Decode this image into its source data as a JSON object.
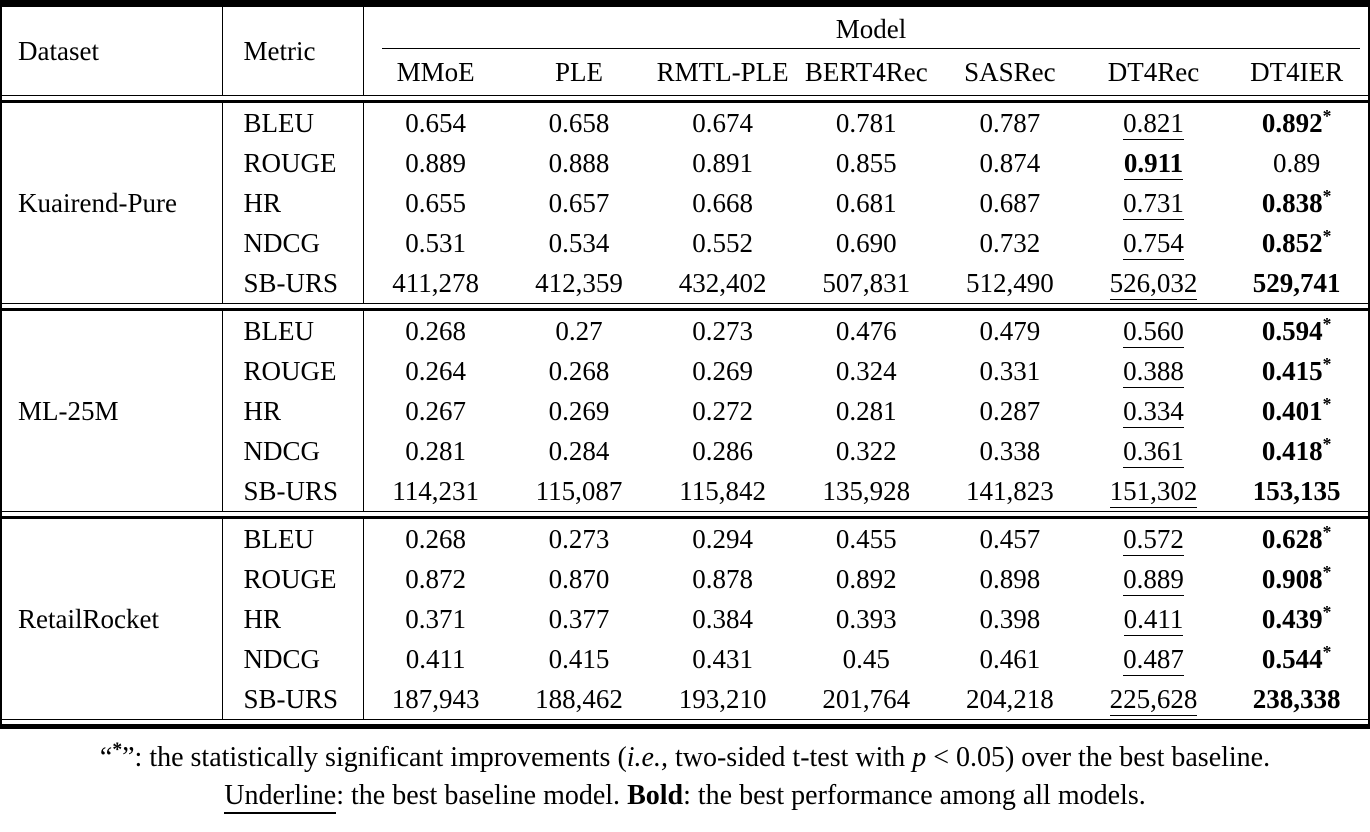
{
  "table": {
    "header": {
      "dataset_label": "Dataset",
      "metric_label": "Metric",
      "model_group_label": "Model",
      "model_columns": [
        "MMoE",
        "PLE",
        "RMTL-PLE",
        "BERT4Rec",
        "SASRec",
        "DT4Rec",
        "DT4IER"
      ]
    },
    "groups": [
      {
        "dataset": "Kuairend-Pure",
        "rows": [
          {
            "metric": "BLEU",
            "cells": [
              {
                "v": "0.654"
              },
              {
                "v": "0.658"
              },
              {
                "v": "0.674"
              },
              {
                "v": "0.781"
              },
              {
                "v": "0.787"
              },
              {
                "v": "0.821",
                "underline": true
              },
              {
                "v": "0.892",
                "bold": true,
                "star": true
              }
            ]
          },
          {
            "metric": "ROUGE",
            "cells": [
              {
                "v": "0.889"
              },
              {
                "v": "0.888"
              },
              {
                "v": "0.891"
              },
              {
                "v": "0.855"
              },
              {
                "v": "0.874"
              },
              {
                "v": "0.911",
                "bold": true,
                "underline": true
              },
              {
                "v": "0.89"
              }
            ]
          },
          {
            "metric": "HR",
            "cells": [
              {
                "v": "0.655"
              },
              {
                "v": "0.657"
              },
              {
                "v": "0.668"
              },
              {
                "v": "0.681"
              },
              {
                "v": "0.687"
              },
              {
                "v": "0.731",
                "underline": true
              },
              {
                "v": "0.838",
                "bold": true,
                "star": true
              }
            ]
          },
          {
            "metric": "NDCG",
            "cells": [
              {
                "v": "0.531"
              },
              {
                "v": "0.534"
              },
              {
                "v": "0.552"
              },
              {
                "v": "0.690"
              },
              {
                "v": "0.732"
              },
              {
                "v": "0.754",
                "underline": true
              },
              {
                "v": "0.852",
                "bold": true,
                "star": true
              }
            ]
          },
          {
            "metric": "SB-URS",
            "cells": [
              {
                "v": "411,278"
              },
              {
                "v": "412,359"
              },
              {
                "v": "432,402"
              },
              {
                "v": "507,831"
              },
              {
                "v": "512,490"
              },
              {
                "v": "526,032",
                "underline": true
              },
              {
                "v": "529,741",
                "bold": true
              }
            ]
          }
        ]
      },
      {
        "dataset": "ML-25M",
        "rows": [
          {
            "metric": "BLEU",
            "cells": [
              {
                "v": "0.268"
              },
              {
                "v": "0.27"
              },
              {
                "v": "0.273"
              },
              {
                "v": "0.476"
              },
              {
                "v": "0.479"
              },
              {
                "v": "0.560",
                "underline": true
              },
              {
                "v": "0.594",
                "bold": true,
                "star": true
              }
            ]
          },
          {
            "metric": "ROUGE",
            "cells": [
              {
                "v": "0.264"
              },
              {
                "v": "0.268"
              },
              {
                "v": "0.269"
              },
              {
                "v": "0.324"
              },
              {
                "v": "0.331"
              },
              {
                "v": "0.388",
                "underline": true
              },
              {
                "v": "0.415",
                "bold": true,
                "star": true
              }
            ]
          },
          {
            "metric": "HR",
            "cells": [
              {
                "v": "0.267"
              },
              {
                "v": "0.269"
              },
              {
                "v": "0.272"
              },
              {
                "v": "0.281"
              },
              {
                "v": "0.287"
              },
              {
                "v": "0.334",
                "underline": true
              },
              {
                "v": "0.401",
                "bold": true,
                "star": true
              }
            ]
          },
          {
            "metric": "NDCG",
            "cells": [
              {
                "v": "0.281"
              },
              {
                "v": "0.284"
              },
              {
                "v": "0.286"
              },
              {
                "v": "0.322"
              },
              {
                "v": "0.338"
              },
              {
                "v": "0.361",
                "underline": true
              },
              {
                "v": "0.418",
                "bold": true,
                "star": true
              }
            ]
          },
          {
            "metric": "SB-URS",
            "cells": [
              {
                "v": "114,231"
              },
              {
                "v": "115,087"
              },
              {
                "v": "115,842"
              },
              {
                "v": "135,928"
              },
              {
                "v": "141,823"
              },
              {
                "v": "151,302",
                "underline": true
              },
              {
                "v": "153,135",
                "bold": true
              }
            ]
          }
        ]
      },
      {
        "dataset": "RetailRocket",
        "rows": [
          {
            "metric": "BLEU",
            "cells": [
              {
                "v": "0.268"
              },
              {
                "v": "0.273"
              },
              {
                "v": "0.294"
              },
              {
                "v": "0.455"
              },
              {
                "v": "0.457"
              },
              {
                "v": "0.572",
                "underline": true
              },
              {
                "v": "0.628",
                "bold": true,
                "star": true
              }
            ]
          },
          {
            "metric": "ROUGE",
            "cells": [
              {
                "v": "0.872"
              },
              {
                "v": "0.870"
              },
              {
                "v": "0.878"
              },
              {
                "v": "0.892"
              },
              {
                "v": "0.898"
              },
              {
                "v": "0.889",
                "underline": true
              },
              {
                "v": "0.908",
                "bold": true,
                "star": true
              }
            ]
          },
          {
            "metric": "HR",
            "cells": [
              {
                "v": "0.371"
              },
              {
                "v": "0.377"
              },
              {
                "v": "0.384"
              },
              {
                "v": "0.393"
              },
              {
                "v": "0.398"
              },
              {
                "v": "0.411",
                "underline": true
              },
              {
                "v": "0.439",
                "bold": true,
                "star": true
              }
            ]
          },
          {
            "metric": "NDCG",
            "cells": [
              {
                "v": "0.411"
              },
              {
                "v": "0.415"
              },
              {
                "v": "0.431"
              },
              {
                "v": "0.45"
              },
              {
                "v": "0.461"
              },
              {
                "v": "0.487",
                "underline": true
              },
              {
                "v": "0.544",
                "bold": true,
                "star": true
              }
            ]
          },
          {
            "metric": "SB-URS",
            "cells": [
              {
                "v": "187,943"
              },
              {
                "v": "188,462"
              },
              {
                "v": "193,210"
              },
              {
                "v": "201,764"
              },
              {
                "v": "204,218"
              },
              {
                "v": "225,628",
                "underline": true
              },
              {
                "v": "238,338",
                "bold": true
              }
            ]
          }
        ]
      }
    ]
  },
  "footnote": {
    "line1": [
      {
        "t": "“",
        "s": "normal"
      },
      {
        "t": "*",
        "s": "boldstar"
      },
      {
        "t": "”: the statistically significant improvements (",
        "s": "normal"
      },
      {
        "t": "i.e.,",
        "s": "italic"
      },
      {
        "t": " two-sided t-test with ",
        "s": "normal"
      },
      {
        "t": "p",
        "s": "italic"
      },
      {
        "t": " < 0.05) over the best baseline.",
        "s": "normal"
      }
    ],
    "line2": [
      {
        "t": "Underline",
        "s": "underline"
      },
      {
        "t": ": the best baseline model. ",
        "s": "normal"
      },
      {
        "t": "Bold",
        "s": "bold"
      },
      {
        "t": ": the best performance among all models.",
        "s": "normal"
      }
    ]
  }
}
